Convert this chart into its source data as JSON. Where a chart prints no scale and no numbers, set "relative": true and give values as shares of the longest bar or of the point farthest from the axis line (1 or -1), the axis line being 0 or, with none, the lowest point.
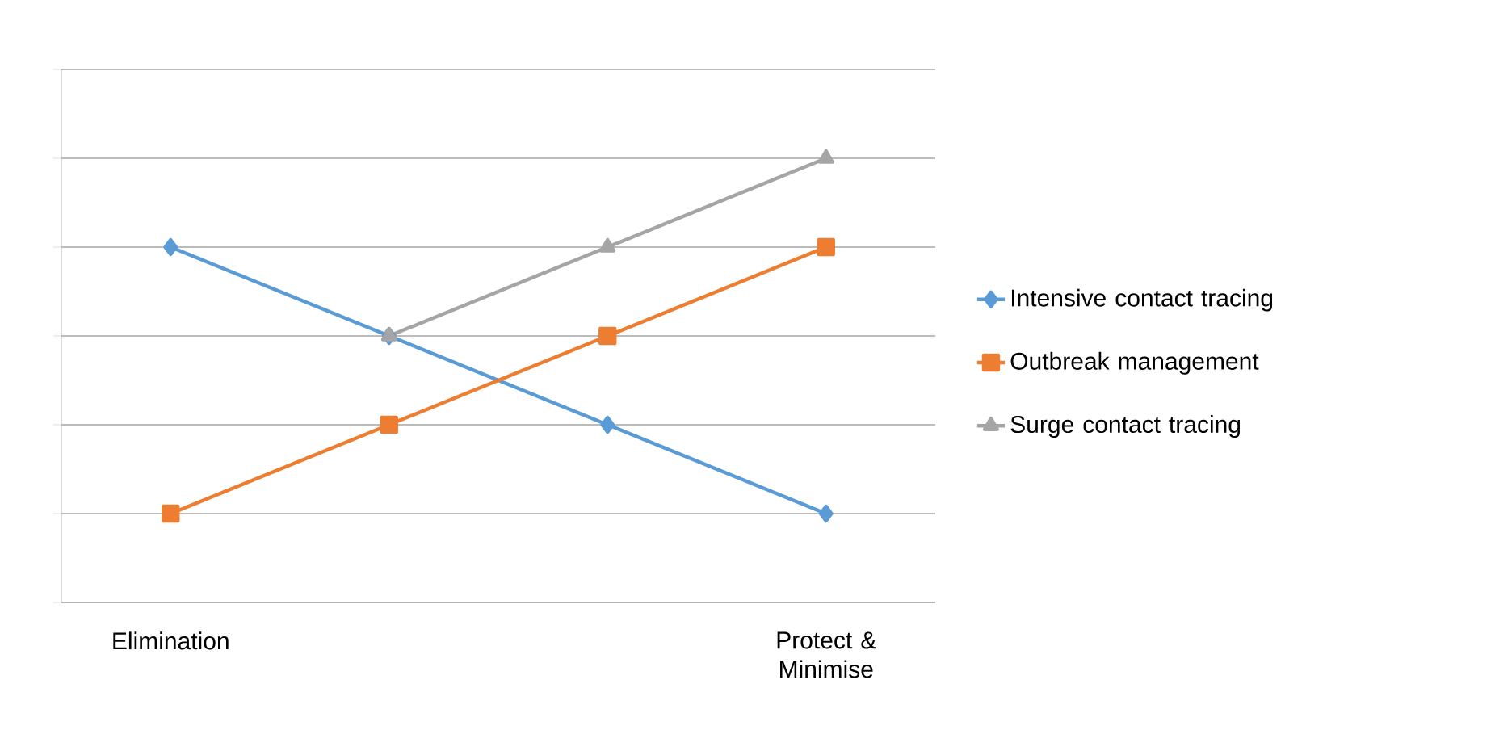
{
  "chart_data": {
    "type": "line",
    "relative": true,
    "categories": [
      "Elimination",
      null,
      null,
      "Protect & Minimise"
    ],
    "grid": "y",
    "legend": "right",
    "line_style": "solid",
    "series": [
      {
        "name": "Intensive contact tracing",
        "color": "#5b9bd5",
        "marker": "diamond",
        "values": [
          0.8,
          0.6,
          0.4,
          0.2
        ]
      },
      {
        "name": "Outbreak management",
        "color": "#ed7d31",
        "marker": "square",
        "values": [
          0.2,
          0.4,
          0.6,
          0.8
        ]
      },
      {
        "name": "Surge contact tracing",
        "color": "#a5a5a5",
        "marker": "triangle",
        "values": [
          null,
          0.6,
          0.8,
          1
        ]
      }
    ]
  }
}
